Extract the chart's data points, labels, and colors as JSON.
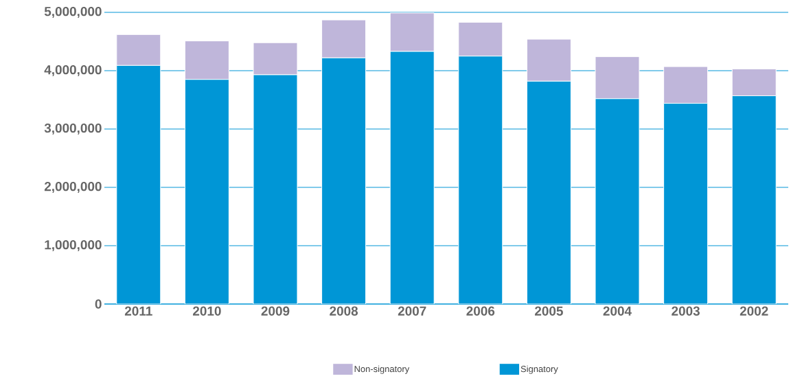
{
  "chart_data": {
    "type": "bar",
    "stacked": true,
    "categories": [
      "2011",
      "2010",
      "2009",
      "2008",
      "2007",
      "2006",
      "2005",
      "2004",
      "2003",
      "2002"
    ],
    "series": [
      {
        "name": "Signatory",
        "color": "#0096d6",
        "values": [
          4090000,
          3850000,
          3930000,
          4220000,
          4330000,
          4250000,
          3820000,
          3520000,
          3440000,
          3570000
        ]
      },
      {
        "name": "Non-signatory",
        "color": "#bfb6da",
        "values": [
          530000,
          660000,
          550000,
          650000,
          660000,
          580000,
          720000,
          720000,
          630000,
          460000
        ]
      }
    ],
    "ylim": [
      0,
      5000000
    ],
    "yticks": [
      0,
      {
        "value": 1000000,
        "label": "1,000,000"
      },
      {
        "value": 2000000,
        "label": "2,000,000"
      },
      {
        "value": 3000000,
        "label": "3,000,000"
      },
      {
        "value": 4000000,
        "label": "4,000,000"
      },
      {
        "value": 5000000,
        "label": "5,000,000"
      }
    ],
    "grid": "y",
    "legend": "bottom"
  }
}
